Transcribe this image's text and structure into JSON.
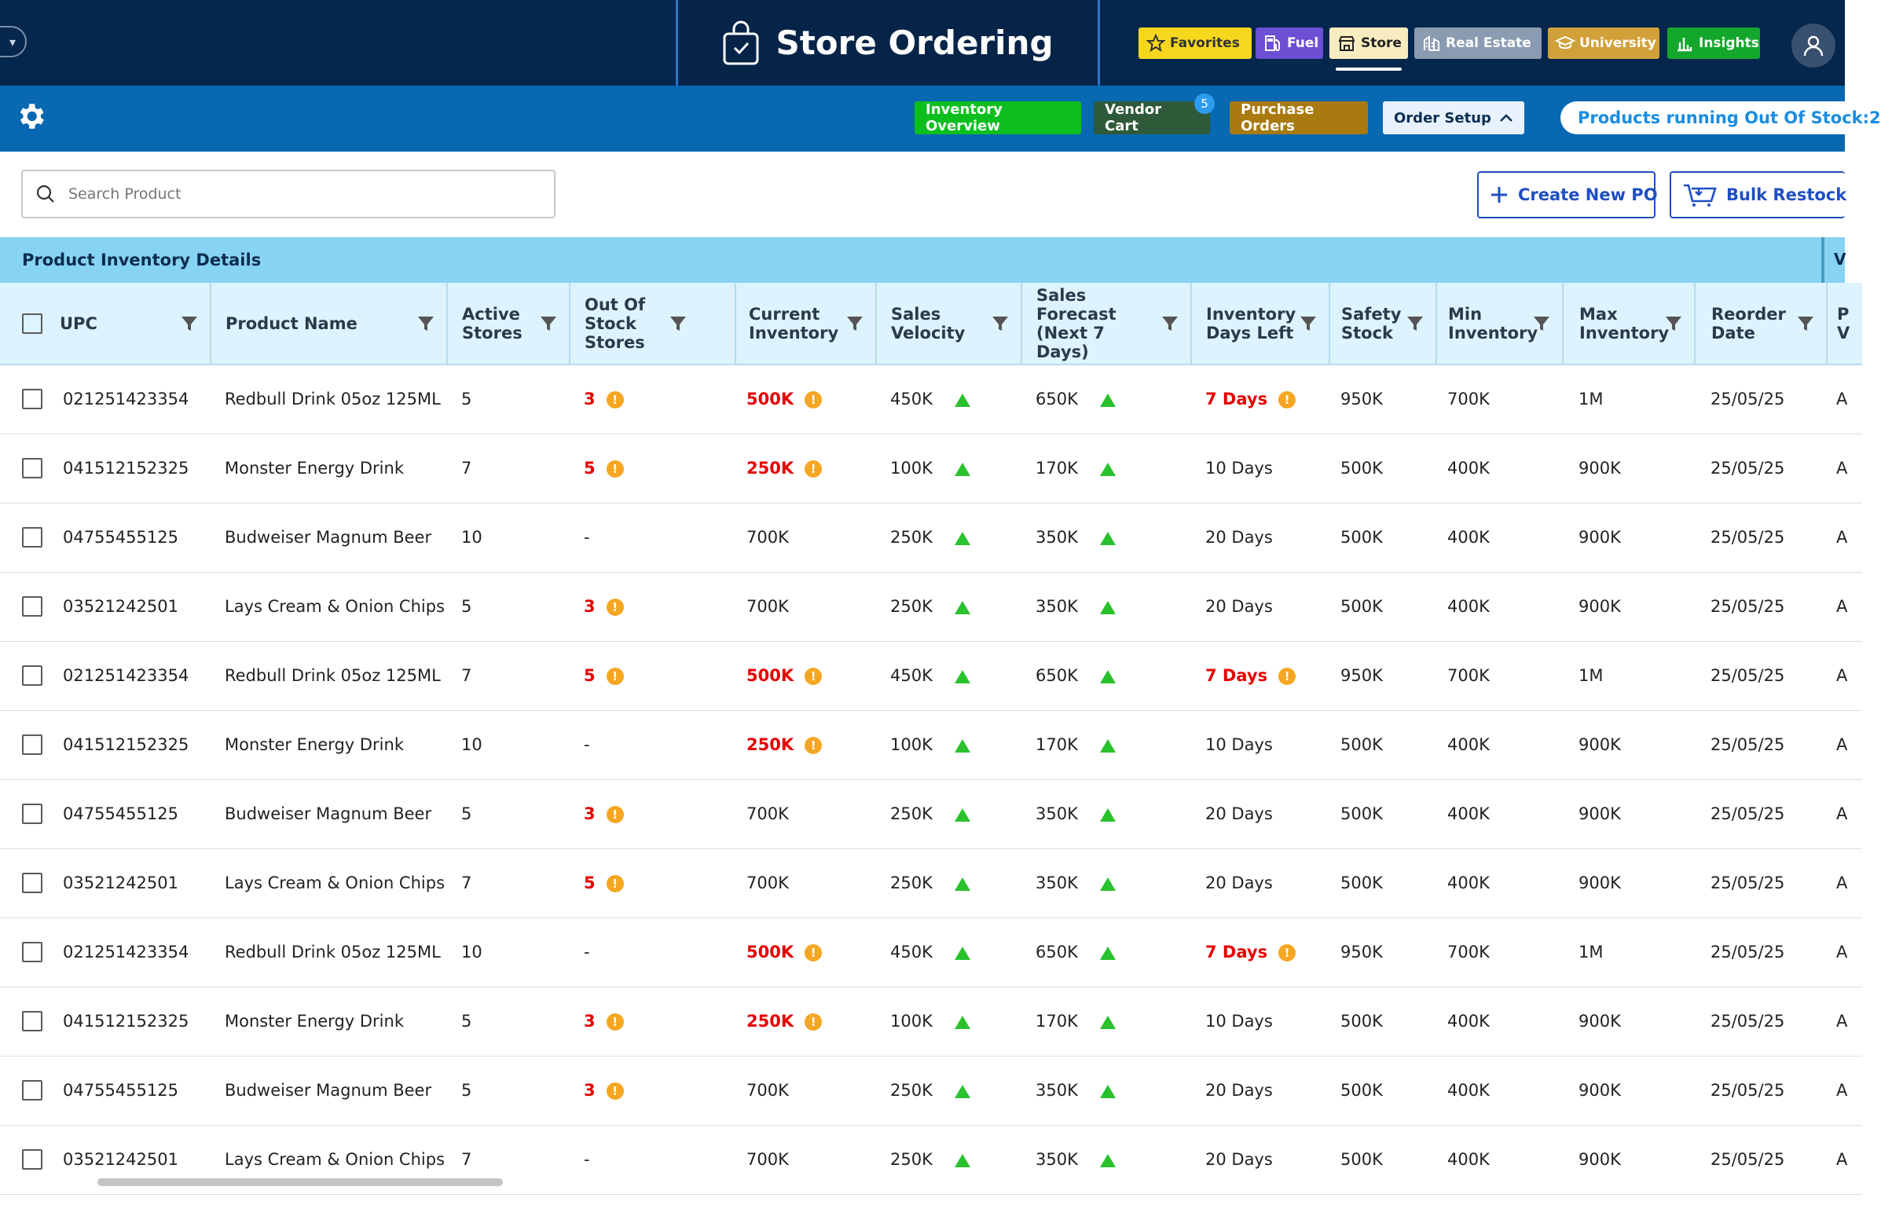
{
  "app": {
    "title": "Store Ordering",
    "nav": [
      {
        "label": "Favorites",
        "icon": "star-icon",
        "bg": "#f6d71e",
        "fg": "#333"
      },
      {
        "label": "Fuel",
        "icon": "fuel-pump-icon",
        "bg": "#6c4fd3",
        "fg": "#fff"
      },
      {
        "label": "Store",
        "icon": "store-icon",
        "bg": "#f7ecc0",
        "fg": "#222"
      },
      {
        "label": "Real Estate",
        "icon": "buildings-icon",
        "bg": "#8b9cb2",
        "fg": "#fff"
      },
      {
        "label": "University",
        "icon": "graduation-cap-icon",
        "bg": "#d1a139",
        "fg": "#fff"
      },
      {
        "label": "Insights",
        "icon": "bar-chart-icon",
        "bg": "#13a72c",
        "fg": "#fff"
      }
    ]
  },
  "toolbar": {
    "inventory_overview": "Inventory Overview",
    "vendor_cart": "Vendor Cart",
    "vendor_cart_count": "5",
    "purchase_orders": "Purchase Orders",
    "order_setup": "Order Setup",
    "alert": "Products running Out Of Stock:2"
  },
  "search": {
    "placeholder": "Search Product"
  },
  "actions": {
    "create_po": "Create New PO",
    "bulk_restock": "Bulk Restock"
  },
  "section": {
    "title": "Product Inventory Details",
    "next_section": "V"
  },
  "table": {
    "headers": {
      "upc": "UPC",
      "product_name": "Product Name",
      "active_stores": "Active Stores",
      "out_of_stock_stores": "Out Of Stock Stores",
      "current_inventory": "Current Inventory",
      "sales_velocity": "Sales Velocity",
      "sales_forecast": "Sales Forecast (Next 7 Days)",
      "inventory_days_left": "Inventory Days Left",
      "safety_stock": "Safety Stock",
      "min_inventory": "Min Inventory",
      "max_inventory": "Max Inventory",
      "reorder_date": "Reorder Date",
      "next_col": "P V"
    },
    "rows": [
      {
        "upc": "021251423354",
        "name": "Redbull Drink 05oz 125ML",
        "active": "5",
        "oos": "3",
        "oos_warn": true,
        "inv": "500K",
        "inv_warn": true,
        "vel": "450K",
        "fc": "650K",
        "days": "7 Days",
        "days_warn": true,
        "safety": "950K",
        "min": "700K",
        "max": "1M",
        "reorder": "25/05/25",
        "next": "A"
      },
      {
        "upc": "041512152325",
        "name": "Monster Energy Drink",
        "active": "7",
        "oos": "5",
        "oos_warn": true,
        "inv": "250K",
        "inv_warn": true,
        "vel": "100K",
        "fc": "170K",
        "days": "10 Days",
        "days_warn": false,
        "safety": "500K",
        "min": "400K",
        "max": "900K",
        "reorder": "25/05/25",
        "next": "A"
      },
      {
        "upc": "04755455125",
        "name": "Budweiser Magnum Beer",
        "active": "10",
        "oos": "-",
        "oos_warn": false,
        "inv": "700K",
        "inv_warn": false,
        "vel": "250K",
        "fc": "350K",
        "days": "20 Days",
        "days_warn": false,
        "safety": "500K",
        "min": "400K",
        "max": "900K",
        "reorder": "25/05/25",
        "next": "A"
      },
      {
        "upc": "03521242501",
        "name": "Lays Cream & Onion Chips",
        "active": "5",
        "oos": "3",
        "oos_warn": true,
        "inv": "700K",
        "inv_warn": false,
        "vel": "250K",
        "fc": "350K",
        "days": "20 Days",
        "days_warn": false,
        "safety": "500K",
        "min": "400K",
        "max": "900K",
        "reorder": "25/05/25",
        "next": "A"
      },
      {
        "upc": "021251423354",
        "name": "Redbull Drink 05oz 125ML",
        "active": "7",
        "oos": "5",
        "oos_warn": true,
        "inv": "500K",
        "inv_warn": true,
        "vel": "450K",
        "fc": "650K",
        "days": "7 Days",
        "days_warn": true,
        "safety": "950K",
        "min": "700K",
        "max": "1M",
        "reorder": "25/05/25",
        "next": "A"
      },
      {
        "upc": "041512152325",
        "name": "Monster Energy Drink",
        "active": "10",
        "oos": "-",
        "oos_warn": false,
        "inv": "250K",
        "inv_warn": true,
        "vel": "100K",
        "fc": "170K",
        "days": "10 Days",
        "days_warn": false,
        "safety": "500K",
        "min": "400K",
        "max": "900K",
        "reorder": "25/05/25",
        "next": "A"
      },
      {
        "upc": "04755455125",
        "name": "Budweiser Magnum Beer",
        "active": "5",
        "oos": "3",
        "oos_warn": true,
        "inv": "700K",
        "inv_warn": false,
        "vel": "250K",
        "fc": "350K",
        "days": "20 Days",
        "days_warn": false,
        "safety": "500K",
        "min": "400K",
        "max": "900K",
        "reorder": "25/05/25",
        "next": "A"
      },
      {
        "upc": "03521242501",
        "name": "Lays Cream & Onion Chips",
        "active": "7",
        "oos": "5",
        "oos_warn": true,
        "inv": "700K",
        "inv_warn": false,
        "vel": "250K",
        "fc": "350K",
        "days": "20 Days",
        "days_warn": false,
        "safety": "500K",
        "min": "400K",
        "max": "900K",
        "reorder": "25/05/25",
        "next": "A"
      },
      {
        "upc": "021251423354",
        "name": "Redbull Drink 05oz 125ML",
        "active": "10",
        "oos": "-",
        "oos_warn": false,
        "inv": "500K",
        "inv_warn": true,
        "vel": "450K",
        "fc": "650K",
        "days": "7 Days",
        "days_warn": true,
        "safety": "950K",
        "min": "700K",
        "max": "1M",
        "reorder": "25/05/25",
        "next": "A"
      },
      {
        "upc": "041512152325",
        "name": "Monster Energy Drink",
        "active": "5",
        "oos": "3",
        "oos_warn": true,
        "inv": "250K",
        "inv_warn": true,
        "vel": "100K",
        "fc": "170K",
        "days": "10 Days",
        "days_warn": false,
        "safety": "500K",
        "min": "400K",
        "max": "900K",
        "reorder": "25/05/25",
        "next": "A"
      },
      {
        "upc": "04755455125",
        "name": "Budweiser Magnum Beer",
        "active": "5",
        "oos": "3",
        "oos_warn": true,
        "inv": "700K",
        "inv_warn": false,
        "vel": "250K",
        "fc": "350K",
        "days": "20 Days",
        "days_warn": false,
        "safety": "500K",
        "min": "400K",
        "max": "900K",
        "reorder": "25/05/25",
        "next": "A"
      },
      {
        "upc": "03521242501",
        "name": "Lays Cream & Onion Chips",
        "active": "7",
        "oos": "-",
        "oos_warn": false,
        "inv": "700K",
        "inv_warn": false,
        "vel": "250K",
        "fc": "350K",
        "days": "20 Days",
        "days_warn": false,
        "safety": "500K",
        "min": "400K",
        "max": "900K",
        "reorder": "25/05/25",
        "next": "A"
      }
    ]
  },
  "colors": {
    "topbar": "#05264d",
    "subbar": "#0868b1",
    "section_header": "#87d3f2",
    "table_header": "#ddf3fd",
    "danger": "#e60000",
    "warning": "#f5a623",
    "trend_up": "#29c22c",
    "inventory_overview_bg": "#0cbf1e",
    "vendor_cart_bg": "#2f5a39",
    "purchase_orders_bg": "#a87a10",
    "order_setup_bg": "#e8f2ff"
  }
}
